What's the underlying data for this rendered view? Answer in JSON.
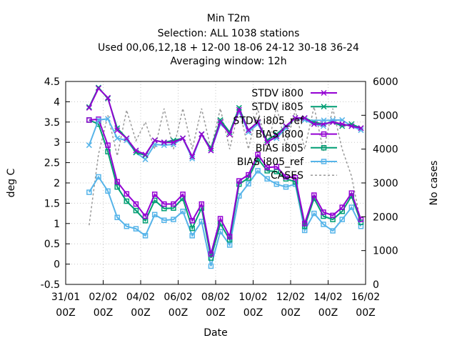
{
  "header": {
    "line1": "Min T2m",
    "line2": "Selection: ALL   1038 stations",
    "line3": "Used  00,06,12,18 + 12-00 18-06 24-12 30-18 36-24",
    "line4": "Averaging window: 12h"
  },
  "chart_data": {
    "type": "line",
    "xlabel": "Date",
    "ylabel": "deg C",
    "y2label": "No cases",
    "ylim": [
      -0.5,
      4.5
    ],
    "y2lim": [
      0,
      6000
    ],
    "xlim": [
      0,
      16
    ],
    "yticks": [
      "-0.5",
      "0",
      "0.5",
      "1",
      "1.5",
      "2",
      "2.5",
      "3",
      "3.5",
      "4",
      "4.5"
    ],
    "y2ticks": [
      "0",
      "1000",
      "2000",
      "3000",
      "4000",
      "5000",
      "6000"
    ],
    "xticks": [
      {
        "day": "31/01",
        "hour": "00Z",
        "x": 0
      },
      {
        "day": "02/02",
        "hour": "00Z",
        "x": 2
      },
      {
        "day": "04/02",
        "hour": "00Z",
        "x": 4
      },
      {
        "day": "06/02",
        "hour": "00Z",
        "x": 6
      },
      {
        "day": "08/02",
        "hour": "00Z",
        "x": 8
      },
      {
        "day": "10/02",
        "hour": "00Z",
        "x": 10
      },
      {
        "day": "12/02",
        "hour": "00Z",
        "x": 12
      },
      {
        "day": "14/02",
        "hour": "00Z",
        "x": 14
      },
      {
        "day": "16/02",
        "hour": "00Z",
        "x": 16
      }
    ],
    "grid": true,
    "legend_position": "top-right",
    "x": [
      1.25,
      1.75,
      2.25,
      2.75,
      3.25,
      3.75,
      4.25,
      4.75,
      5.25,
      5.75,
      6.25,
      6.75,
      7.25,
      7.75,
      8.25,
      8.75,
      9.25,
      9.75,
      10.25,
      10.75,
      11.25,
      11.75,
      12.25,
      12.75,
      13.25,
      13.75,
      14.25,
      14.75,
      15.25,
      15.75
    ],
    "series": [
      {
        "name": "STDV i800",
        "color": "#9400d3",
        "marker": "x",
        "axis": "y1",
        "values": [
          3.85,
          4.33,
          4.1,
          3.3,
          3.1,
          2.8,
          2.7,
          3.05,
          3.0,
          3.0,
          3.1,
          2.65,
          3.2,
          2.8,
          3.5,
          3.2,
          3.8,
          3.3,
          3.5,
          3.0,
          3.15,
          3.4,
          3.6,
          3.6,
          3.45,
          3.45,
          3.5,
          3.45,
          3.4,
          3.35
        ]
      },
      {
        "name": "STDV i805",
        "color": "#009e73",
        "marker": "x",
        "axis": "y1",
        "values": [
          3.87,
          4.35,
          4.08,
          3.35,
          3.1,
          2.75,
          2.68,
          3.05,
          3.0,
          3.05,
          3.1,
          2.65,
          3.2,
          2.85,
          3.55,
          3.25,
          3.85,
          3.3,
          3.5,
          3.05,
          3.2,
          3.4,
          3.6,
          3.6,
          3.5,
          3.45,
          3.5,
          3.4,
          3.45,
          3.35
        ]
      },
      {
        "name": "STDV i805_ref",
        "color": "#56b4e9",
        "marker": "x",
        "axis": "y1",
        "values": [
          2.93,
          3.55,
          3.58,
          3.1,
          3.05,
          2.75,
          2.58,
          2.95,
          2.93,
          2.95,
          3.1,
          2.6,
          3.2,
          2.8,
          3.45,
          3.25,
          3.75,
          3.25,
          3.45,
          3.05,
          3.1,
          3.35,
          3.6,
          3.55,
          3.45,
          3.4,
          3.55,
          3.55,
          3.4,
          3.3
        ]
      },
      {
        "name": "BIAS i800",
        "color": "#9400d3",
        "marker": "square",
        "axis": "y1",
        "values": [
          3.55,
          3.57,
          2.93,
          2.03,
          1.73,
          1.48,
          1.18,
          1.72,
          1.48,
          1.48,
          1.72,
          1.07,
          1.48,
          0.25,
          1.12,
          0.68,
          2.05,
          2.2,
          2.7,
          2.38,
          2.4,
          2.15,
          2.13,
          1.0,
          1.7,
          1.28,
          1.2,
          1.4,
          1.75,
          1.1
        ]
      },
      {
        "name": "BIAS i805",
        "color": "#009e73",
        "marker": "square",
        "axis": "y1",
        "values": [
          3.55,
          3.45,
          2.77,
          1.9,
          1.55,
          1.32,
          1.07,
          1.57,
          1.37,
          1.38,
          1.62,
          0.88,
          1.38,
          0.15,
          1.0,
          0.6,
          1.97,
          2.12,
          2.6,
          2.3,
          2.28,
          2.1,
          2.03,
          0.93,
          1.62,
          1.18,
          1.1,
          1.3,
          1.68,
          1.03
        ]
      },
      {
        "name": "BIAS i805_ref",
        "color": "#56b4e9",
        "marker": "square",
        "axis": "y1",
        "values": [
          1.77,
          2.15,
          1.8,
          1.15,
          0.93,
          0.87,
          0.7,
          1.22,
          1.08,
          1.1,
          1.3,
          0.7,
          1.05,
          -0.05,
          0.8,
          0.47,
          1.68,
          1.98,
          2.3,
          2.1,
          1.97,
          1.9,
          1.97,
          0.83,
          1.25,
          0.98,
          0.82,
          1.1,
          1.4,
          0.93
        ]
      },
      {
        "name": "CASES",
        "color": "#999999",
        "marker": "none",
        "axis": "y2",
        "values": [
          1750,
          3850,
          5000,
          3800,
          5150,
          4250,
          4800,
          4000,
          5200,
          4000,
          5200,
          4000,
          5200,
          4000,
          5200,
          4000,
          5200,
          4000,
          5200,
          4000,
          5250,
          4100,
          5150,
          4000,
          5250,
          3950,
          5200,
          4000,
          3200,
          1800
        ]
      }
    ]
  }
}
